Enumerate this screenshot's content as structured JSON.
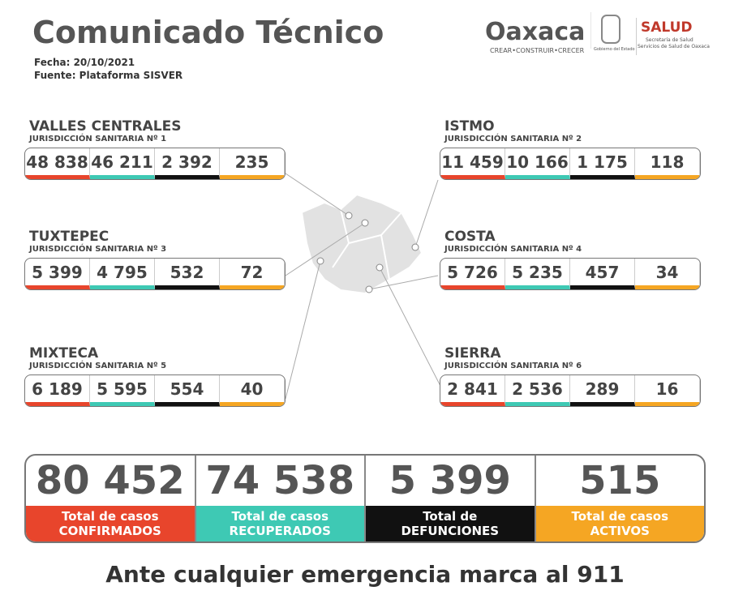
{
  "header": {
    "title": "Comunicado Técnico",
    "fecha": "Fecha: 20/10/2021",
    "fuente": "Fuente: Plataforma SISVER"
  },
  "logos": {
    "oaxaca": "Oaxaca",
    "oaxaca_tagline": "CREAR•CONSTRUIR•CRECER",
    "gobierno": "Gobierno del Estado",
    "salud": "SALUD",
    "salud_sub1": "Secretaría de Salud",
    "salud_sub2": "Servicios de Salud de Oaxaca"
  },
  "regions": [
    {
      "name": "VALLES CENTRALES",
      "subtitle": "JURISDICCIÓN SANITARIA Nº 1",
      "values": [
        "48 838",
        "46 211",
        "2 392",
        "235"
      ]
    },
    {
      "name": "ISTMO",
      "subtitle": "JURISDICCIÓN SANITARIA Nº 2",
      "values": [
        "11 459",
        "10 166",
        "1 175",
        "118"
      ]
    },
    {
      "name": "TUXTEPEC",
      "subtitle": "JURISDICCIÓN SANITARIA Nº 3",
      "values": [
        "5 399",
        "4 795",
        "532",
        "72"
      ]
    },
    {
      "name": "COSTA",
      "subtitle": "JURISDICCIÓN SANITARIA Nº 4",
      "values": [
        "5 726",
        "5 235",
        "457",
        "34"
      ]
    },
    {
      "name": "MIXTECA",
      "subtitle": "JURISDICCIÓN SANITARIA Nº 5",
      "values": [
        "6 189",
        "5 595",
        "554",
        "40"
      ]
    },
    {
      "name": "SIERRA",
      "subtitle": "JURISDICCIÓN SANITARIA Nº 6",
      "values": [
        "2 841",
        "2 536",
        "289",
        "16"
      ]
    }
  ],
  "totals": [
    {
      "value": "80 452",
      "label": [
        "Total de casos",
        "CONFIRMADOS"
      ]
    },
    {
      "value": "74 538",
      "label": [
        "Total de casos",
        "RECUPERADOS"
      ]
    },
    {
      "value": "5 399",
      "label": [
        "Total de",
        "DEFUNCIONES"
      ]
    },
    {
      "value": "515",
      "label": [
        "Total de casos",
        "ACTIVOS"
      ]
    }
  ],
  "footer": "Ante cualquier emergencia marca al 911"
}
